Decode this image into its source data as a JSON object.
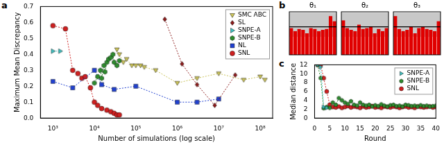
{
  "chart_data": [
    {
      "panel": "a",
      "type": "line",
      "xlabel": "Number of simulations (log scale)",
      "ylabel": "Maximum Mean Discrepancy",
      "log": "x",
      "grid": false,
      "legend": "upper right",
      "xlim": [
        500,
        200000000
      ],
      "ylim": [
        0,
        0.7
      ],
      "xticks": [
        {
          "value": 1000,
          "label": "10³"
        },
        {
          "value": 10000,
          "label": "10⁴"
        },
        {
          "value": 100000,
          "label": "10⁵"
        },
        {
          "value": 1000000,
          "label": "10⁶"
        },
        {
          "value": 10000000,
          "label": "10⁷"
        },
        {
          "value": 100000000,
          "label": "10⁸"
        }
      ],
      "yticks": [
        {
          "value": 0,
          "label": "0.0"
        },
        0.1,
        0.2,
        0.3,
        0.4,
        0.5,
        0.6,
        0.7
      ],
      "series": [
        {
          "name": "SMC ABC",
          "color": "#c9c25a",
          "marker": "triangle_down",
          "line_style": "dotted",
          "x": [
            35000,
            40000,
            50000,
            60000,
            80000,
            100000,
            130000,
            160000,
            300000,
            1000000,
            3000000,
            10000000,
            40000000,
            100000000,
            130000000
          ],
          "values": [
            0.43,
            0.4,
            0.35,
            0.37,
            0.33,
            0.33,
            0.33,
            0.32,
            0.3,
            0.22,
            0.25,
            0.28,
            0.24,
            0.26,
            0.24
          ]
        },
        {
          "name": "SL",
          "color": "#8b1a1a",
          "marker": "diamond",
          "line_style": "dotted",
          "x": [
            500000,
            1300000,
            3000000,
            8000000,
            25000000
          ],
          "values": [
            0.62,
            0.34,
            0.21,
            0.08,
            0.27
          ]
        },
        {
          "name": "SNPE-A",
          "color": "#3fbfbf",
          "marker": "triangle_right",
          "line_style": "dotted",
          "x": [
            1000,
            1500
          ],
          "values": [
            0.42,
            0.42
          ]
        },
        {
          "name": "SNPE-B",
          "color": "#2e8b2e",
          "marker": "hexagon",
          "line_style": "dotted",
          "x": [
            10000,
            12000,
            14000,
            15000,
            17000,
            18000,
            20000,
            22000,
            25000,
            28000,
            30000,
            35000,
            40000
          ],
          "values": [
            0.22,
            0.26,
            0.3,
            0.25,
            0.33,
            0.29,
            0.35,
            0.37,
            0.38,
            0.4,
            0.35,
            0.33,
            0.36
          ]
        },
        {
          "name": "NL",
          "color": "#2040d0",
          "marker": "square",
          "line_style": "dotted",
          "x": [
            1000,
            3000,
            10000,
            15000,
            30000,
            100000,
            1000000,
            3000000,
            10000000
          ],
          "values": [
            0.23,
            0.19,
            0.3,
            0.21,
            0.18,
            0.2,
            0.1,
            0.1,
            0.12
          ]
        },
        {
          "name": "SNL",
          "color": "#d02020",
          "marker": "circle",
          "line_style": "dotted",
          "x": [
            1000,
            2000,
            3000,
            4000,
            5000,
            6000,
            8000,
            10000,
            12000,
            15000,
            20000,
            25000,
            30000,
            35000,
            40000
          ],
          "values": [
            0.58,
            0.56,
            0.3,
            0.28,
            0.25,
            0.26,
            0.19,
            0.1,
            0.08,
            0.06,
            0.05,
            0.04,
            0.03,
            0.02,
            0.02
          ]
        }
      ]
    },
    {
      "panel": "b",
      "type": "bar",
      "tick_labels": false,
      "color": "#e00000",
      "ylim": [
        0,
        1
      ],
      "band": [
        0.42,
        0.98
      ],
      "reference": 0.65,
      "subplots": [
        {
          "title": "θ₁",
          "values": [
            0.62,
            0.55,
            0.6,
            0.58,
            0.5,
            0.62,
            0.6,
            0.55,
            0.58,
            0.6,
            0.9,
            0.78
          ]
        },
        {
          "title": "θ₂",
          "values": [
            0.8,
            0.62,
            0.58,
            0.55,
            0.7,
            0.6,
            0.62,
            0.65,
            0.5,
            0.6,
            0.55,
            0.62
          ]
        },
        {
          "title": "θ₃",
          "values": [
            0.9,
            0.6,
            0.55,
            0.58,
            0.65,
            0.5,
            0.62,
            0.65,
            0.6,
            0.58,
            0.55,
            0.78
          ]
        }
      ]
    },
    {
      "panel": "c",
      "type": "line",
      "xlabel": "Round",
      "ylabel": "Median distance",
      "grid": false,
      "legend": "upper right",
      "xlim": [
        0,
        40
      ],
      "ylim": [
        0,
        12
      ],
      "xticks": [
        0,
        5,
        10,
        15,
        20,
        25,
        30,
        35,
        40
      ],
      "yticks": [
        0,
        2,
        4,
        6,
        8,
        10,
        12
      ],
      "x": [
        1,
        2,
        3,
        4,
        5,
        6,
        7,
        8,
        9,
        10,
        11,
        12,
        13,
        14,
        15,
        16,
        17,
        18,
        19,
        20,
        21,
        22,
        23,
        24,
        25,
        26,
        27,
        28,
        29,
        30,
        31,
        32,
        33,
        34,
        35,
        36,
        37,
        38,
        39,
        40
      ],
      "series": [
        {
          "name": "SNPE-A",
          "color": "#3fbfbf",
          "marker": "triangle_right",
          "line_style": "dotted",
          "values": [
            12,
            11.5,
            2.5,
            2.3,
            null,
            null,
            null,
            null,
            null,
            null,
            null,
            null,
            null,
            null,
            null,
            null,
            null,
            null,
            null,
            null,
            null,
            null,
            null,
            null,
            null,
            null,
            null,
            null,
            null,
            null,
            null,
            null,
            null,
            null,
            null,
            null,
            null,
            null,
            null,
            null
          ]
        },
        {
          "name": "SNPE-B",
          "color": "#2e8b2e",
          "marker": "hexagon",
          "line_style": "dotted",
          "values": [
            12,
            9,
            2.2,
            2.5,
            2.3,
            3.5,
            3.0,
            4.5,
            4.0,
            3.5,
            3.2,
            3.8,
            3.0,
            2.8,
            3.5,
            3.0,
            2.8,
            3.0,
            2.6,
            2.9,
            2.7,
            3.1,
            2.8,
            2.6,
            2.9,
            3.0,
            2.7,
            2.8,
            2.6,
            3.0,
            2.9,
            2.7,
            2.8,
            2.6,
            2.9,
            2.7,
            2.8,
            2.6,
            2.7,
            2.8
          ]
        },
        {
          "name": "SNL",
          "color": "#d02020",
          "marker": "circle",
          "line_style": "dotted",
          "values": [
            12,
            12,
            9,
            6,
            3,
            2.5,
            2.4,
            2.6,
            2.3,
            2.5,
            2.7,
            2.4,
            2.6,
            2.5,
            2.3,
            2.6,
            2.4,
            2.5,
            2.7,
            2.4,
            2.5,
            2.3,
            2.6,
            2.5,
            2.4,
            2.6,
            2.5,
            2.3,
            2.5,
            2.6,
            2.4,
            2.5,
            2.3,
            2.6,
            2.5,
            2.4,
            2.5,
            2.6,
            2.4,
            2.5
          ]
        }
      ]
    }
  ]
}
